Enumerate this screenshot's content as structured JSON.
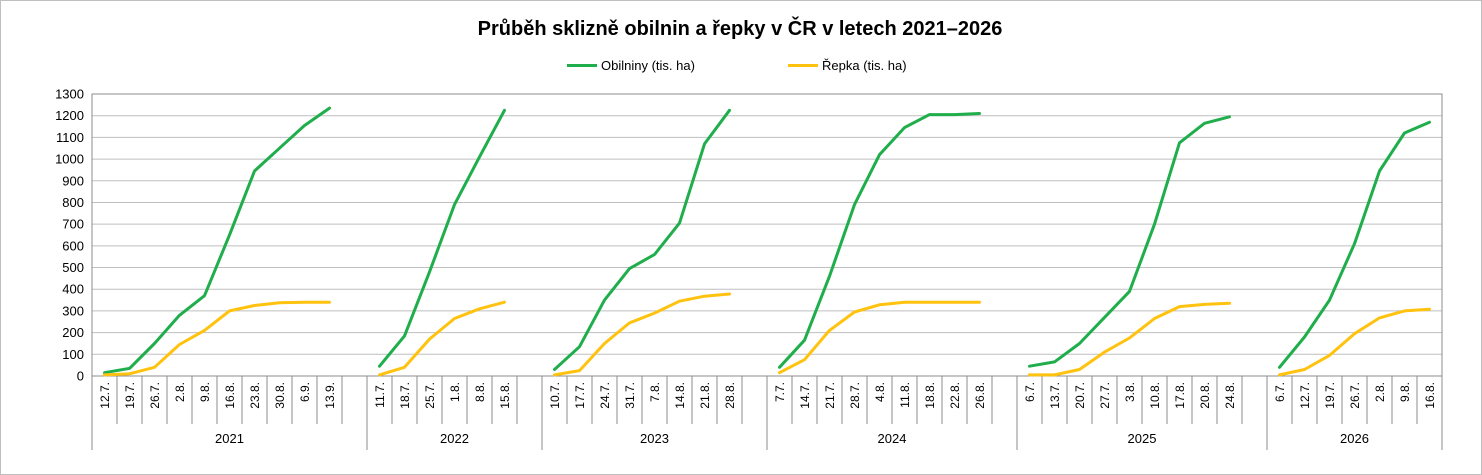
{
  "chart_data": {
    "type": "line",
    "title": "Průběh sklizně obilnin a řepky v ČR v letech 2021–2026",
    "legend_position": "top",
    "ylim": [
      0,
      1300
    ],
    "yticks": [
      0,
      100,
      200,
      300,
      400,
      500,
      600,
      700,
      800,
      900,
      1000,
      1100,
      1200,
      1300
    ],
    "grid": true,
    "series": [
      {
        "name": "Obilniny (tis. ha)",
        "color": "#1fae4b"
      },
      {
        "name": "Řepka (tis. ha)",
        "color": "#ffc20e"
      }
    ],
    "groups": [
      {
        "year": "2021",
        "dates": [
          "12.7.",
          "19.7.",
          "26.7.",
          "2.8.",
          "9.8.",
          "16.8.",
          "23.8.",
          "30.8.",
          "6.9.",
          "13.9."
        ],
        "obilniny": [
          15,
          35,
          150,
          280,
          370,
          650,
          945,
          1050,
          1155,
          1235
        ],
        "repka": [
          5,
          10,
          40,
          145,
          210,
          300,
          325,
          338,
          340,
          340
        ]
      },
      {
        "year": "2022",
        "dates": [
          "11.7.",
          "18.7.",
          "25.7.",
          "1.8.",
          "8.8.",
          "15.8."
        ],
        "obilniny": [
          45,
          185,
          480,
          790,
          1010,
          1225
        ],
        "repka": [
          5,
          40,
          170,
          265,
          310,
          340
        ]
      },
      {
        "year": "2023",
        "dates": [
          "10.7.",
          "17.7.",
          "24.7.",
          "31.7.",
          "7.8.",
          "14.8.",
          "21.8.",
          "28.8."
        ],
        "obilniny": [
          30,
          135,
          350,
          495,
          560,
          705,
          1070,
          1225
        ],
        "repka": [
          5,
          25,
          150,
          245,
          290,
          345,
          368,
          378
        ]
      },
      {
        "year": "2024",
        "dates": [
          "7.7.",
          "14.7.",
          "21.7.",
          "28.7.",
          "4.8.",
          "11.8.",
          "18.8.",
          "22.8.",
          "26.8."
        ],
        "obilniny": [
          40,
          165,
          460,
          790,
          1020,
          1145,
          1205,
          1205,
          1210
        ],
        "repka": [
          15,
          75,
          210,
          295,
          328,
          340,
          340,
          340,
          340
        ]
      },
      {
        "year": "2025",
        "dates": [
          "6.7.",
          "13.7.",
          "20.7.",
          "27.7.",
          "3.8.",
          "10.8.",
          "17.8.",
          "20.8.",
          "24.8."
        ],
        "obilniny": [
          45,
          65,
          150,
          270,
          390,
          700,
          1075,
          1165,
          1195
        ],
        "repka": [
          5,
          5,
          30,
          110,
          175,
          265,
          320,
          330,
          335
        ]
      },
      {
        "year": "2026",
        "dates": [
          "6.7.",
          "12.7.",
          "19.7.",
          "26.7.",
          "2.8.",
          "9.8.",
          "16.8."
        ],
        "obilniny": [
          40,
          180,
          350,
          610,
          945,
          1120,
          1170
        ],
        "repka": [
          5,
          30,
          95,
          195,
          268,
          300,
          308
        ]
      }
    ]
  }
}
